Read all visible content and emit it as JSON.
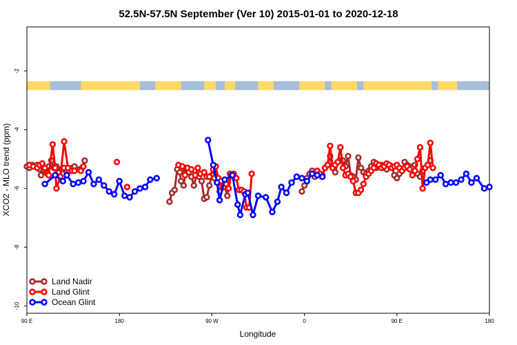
{
  "chart_data": {
    "type": "line",
    "title": "52.5N-57.5N September (Ver 10)   2015-01-01 to 2020-12-18",
    "xlabel": "Longitude",
    "ylabel": "XCO2 - MLO trend (ppm)",
    "xlim": [
      90,
      450
    ],
    "ylim": [
      -10.25,
      -0.5
    ],
    "x_ticks": [
      {
        "value": 90,
        "label": "90 E"
      },
      {
        "value": 162,
        "label": "180"
      },
      {
        "value": 234,
        "label": "90 W"
      },
      {
        "value": 306,
        "label": "0"
      },
      {
        "value": 378,
        "label": "90 E"
      },
      {
        "value": 450,
        "label": "180"
      }
    ],
    "y_ticks": [
      {
        "value": -2,
        "label": "-2"
      },
      {
        "value": -4,
        "label": "-4"
      },
      {
        "value": -6,
        "label": "-6"
      },
      {
        "value": -8,
        "label": "-8"
      },
      {
        "value": -10,
        "label": "-10"
      }
    ],
    "grid": false,
    "legend_position": "bottom-left",
    "land_strip": {
      "y_top": -2.35,
      "y_bottom": -2.65,
      "land_color": "#ffd966",
      "ocean_color": "#a6bddb"
    },
    "series": [
      {
        "name": "Land Nadir",
        "color": "#a52a2a",
        "segments": [
          [
            [
              90,
              -5.25
            ],
            [
              92,
              -5.3
            ],
            [
              94,
              -5.2
            ],
            [
              96,
              -5.25
            ],
            [
              98,
              -5.2
            ],
            [
              100,
              -5.35
            ],
            [
              101,
              -5.55
            ],
            [
              103,
              -5.35
            ],
            [
              105,
              -5.45
            ],
            [
              107,
              -5.25
            ],
            [
              109,
              -5.05
            ],
            [
              111,
              -5.3
            ],
            [
              113,
              -5.25
            ],
            [
              115,
              -5.45
            ],
            [
              117,
              -5.35
            ],
            [
              119,
              -5.3
            ],
            [
              121,
              -5.45
            ],
            [
              123,
              -5.4
            ],
            [
              125,
              -5.3
            ],
            [
              127,
              -5.25
            ],
            [
              131,
              -5.35
            ],
            [
              133,
              -5.3
            ],
            [
              135,
              -5.05
            ]
          ],
          [
            [
              201,
              -6.45
            ],
            [
              203,
              -6.15
            ],
            [
              205,
              -6.05
            ],
            [
              207,
              -5.35
            ],
            [
              209,
              -5.45
            ],
            [
              210,
              -5.75
            ],
            [
              212,
              -5.9
            ],
            [
              214,
              -5.3
            ],
            [
              216,
              -5.45
            ],
            [
              218,
              -5.6
            ],
            [
              220,
              -5.9
            ],
            [
              222,
              -5.55
            ],
            [
              224,
              -5.6
            ],
            [
              226,
              -5.75
            ],
            [
              228,
              -6.35
            ],
            [
              230,
              -6.3
            ],
            [
              232,
              -5.9
            ],
            [
              234,
              -5.55
            ],
            [
              236,
              -5.65
            ],
            [
              238,
              -5.8
            ],
            [
              240,
              -6.1
            ],
            [
              242,
              -5.85
            ],
            [
              244,
              -5.9
            ],
            [
              246,
              -6.25
            ],
            [
              248,
              -5.5
            ]
          ],
          [
            [
              304,
              -6.1
            ],
            [
              306,
              -5.9
            ],
            [
              308,
              -5.65
            ],
            [
              310,
              -5.5
            ],
            [
              312,
              -5.4
            ],
            [
              314,
              -5.6
            ],
            [
              316,
              -5.45
            ],
            [
              318,
              -5.5
            ],
            [
              320,
              -5.55
            ],
            [
              322,
              -5.3
            ],
            [
              324,
              -5.2
            ],
            [
              326,
              -4.9
            ],
            [
              328,
              -5.3
            ],
            [
              330,
              -5.45
            ],
            [
              332,
              -5.1
            ],
            [
              334,
              -5.05
            ],
            [
              336,
              -5.05
            ],
            [
              338,
              -5.25
            ],
            [
              340,
              -4.9
            ],
            [
              342,
              -5.55
            ],
            [
              344,
              -5.6
            ],
            [
              346,
              -5.7
            ],
            [
              348,
              -4.95
            ],
            [
              350,
              -5.3
            ],
            [
              352,
              -5.45
            ],
            [
              354,
              -5.5
            ],
            [
              356,
              -5.4
            ],
            [
              358,
              -5.25
            ],
            [
              360,
              -5.1
            ],
            [
              362,
              -5.3
            ],
            [
              364,
              -5.25
            ],
            [
              366,
              -5.2
            ],
            [
              368,
              -5.3
            ],
            [
              370,
              -5.35
            ],
            [
              372,
              -5.2
            ],
            [
              374,
              -5.25
            ],
            [
              376,
              -5.55
            ],
            [
              378,
              -5.65
            ],
            [
              380,
              -5.5
            ],
            [
              382,
              -5.4
            ],
            [
              384,
              -5.1
            ],
            [
              386,
              -5.2
            ],
            [
              388,
              -5.25
            ],
            [
              390,
              -5.3
            ],
            [
              392,
              -5.2
            ],
            [
              394,
              -5.5
            ],
            [
              396,
              -5.6
            ],
            [
              398,
              -5.4
            ],
            [
              400,
              -5.3
            ],
            [
              402,
              -5.2
            ],
            [
              404,
              -5.05
            ]
          ]
        ]
      },
      {
        "name": "Land Glint",
        "color": "#ff0000",
        "segments": [
          [
            [
              92,
              -5.2
            ],
            [
              95,
              -5.25
            ],
            [
              98,
              -5.3
            ],
            [
              100,
              -5.2
            ],
            [
              102,
              -5.15
            ],
            [
              104,
              -5.3
            ],
            [
              106,
              -5.5
            ],
            [
              107,
              -5.55
            ],
            [
              110,
              -4.5
            ],
            [
              112,
              -5.3
            ],
            [
              113,
              -6.0
            ],
            [
              116,
              -5.6
            ],
            [
              119,
              -4.4
            ],
            [
              122,
              -5.3
            ],
            [
              125,
              -5.4
            ],
            [
              127,
              -5.4
            ],
            [
              132,
              -5.4
            ],
            [
              134,
              -5.25
            ]
          ],
          [
            [
              160,
              -5.1
            ]
          ],
          [
            [
              168,
              -5.95
            ]
          ],
          [
            [
              208,
              -5.2
            ],
            [
              211,
              -5.25
            ],
            [
              213,
              -5.55
            ],
            [
              215,
              -5.3
            ],
            [
              218,
              -5.35
            ],
            [
              221,
              -5.55
            ],
            [
              223,
              -5.3
            ],
            [
              225,
              -5.5
            ],
            [
              228,
              -5.45
            ],
            [
              230,
              -5.6
            ],
            [
              232,
              -5.6
            ],
            [
              235,
              -5.35
            ],
            [
              237,
              -5.25
            ],
            [
              239,
              -5.65
            ],
            [
              241,
              -5.75
            ],
            [
              243,
              -5.95
            ],
            [
              245,
              -5.85
            ],
            [
              247,
              -6.0
            ],
            [
              249,
              -5.55
            ],
            [
              251,
              -5.5
            ],
            [
              253,
              -5.65
            ],
            [
              255,
              -6.05
            ],
            [
              257,
              -6.05
            ],
            [
              259,
              -6.1
            ],
            [
              261,
              -6.65
            ],
            [
              263,
              -6.65
            ],
            [
              265,
              -5.5
            ]
          ],
          [
            [
              316,
              -5.4
            ],
            [
              318,
              -5.5
            ],
            [
              320,
              -5.6
            ],
            [
              322,
              -5.3
            ],
            [
              324,
              -5.2
            ],
            [
              326,
              -4.55
            ],
            [
              328,
              -5.3
            ],
            [
              330,
              -5.2
            ],
            [
              332,
              -5.1
            ],
            [
              334,
              -4.6
            ],
            [
              336,
              -5.3
            ],
            [
              338,
              -5.55
            ],
            [
              340,
              -5.5
            ],
            [
              342,
              -5.6
            ],
            [
              344,
              -5.75
            ],
            [
              346,
              -6.15
            ],
            [
              348,
              -6.15
            ],
            [
              350,
              -6.05
            ],
            [
              352,
              -5.85
            ],
            [
              354,
              -5.6
            ],
            [
              356,
              -5.5
            ],
            [
              358,
              -5.4
            ],
            [
              360,
              -5.3
            ],
            [
              362,
              -5.15
            ],
            [
              364,
              -5.2
            ],
            [
              366,
              -5.3
            ],
            [
              368,
              -5.25
            ],
            [
              370,
              -5.15
            ],
            [
              372,
              -5.2
            ],
            [
              374,
              -5.3
            ],
            [
              376,
              -5.25
            ],
            [
              378,
              -5.2
            ],
            [
              380,
              -5.3
            ],
            [
              382,
              -5.4
            ],
            [
              384,
              -5.3
            ],
            [
              386,
              -5.25
            ],
            [
              388,
              -5.35
            ],
            [
              390,
              -5.55
            ],
            [
              392,
              -5.4
            ],
            [
              394,
              -5.0
            ],
            [
              396,
              -4.6
            ],
            [
              398,
              -6.0
            ],
            [
              400,
              -5.3
            ],
            [
              402,
              -5.2
            ],
            [
              404,
              -4.45
            ],
            [
              406,
              -5.3
            ]
          ]
        ]
      },
      {
        "name": "Ocean Glint",
        "color": "#0000ff",
        "segments": [
          [
            [
              104,
              -5.85
            ],
            [
              112,
              -5.55
            ],
            [
              118,
              -5.75
            ],
            [
              121,
              -5.55
            ],
            [
              126,
              -5.85
            ],
            [
              130,
              -5.8
            ],
            [
              134,
              -5.75
            ],
            [
              138,
              -5.45
            ],
            [
              142,
              -5.85
            ],
            [
              146,
              -5.7
            ],
            [
              150,
              -5.9
            ],
            [
              154,
              -6.1
            ],
            [
              158,
              -6.2
            ],
            [
              162,
              -5.75
            ],
            [
              166,
              -6.25
            ],
            [
              170,
              -6.3
            ],
            [
              174,
              -6.1
            ],
            [
              178,
              -6.0
            ],
            [
              182,
              -5.95
            ],
            [
              186,
              -5.7
            ],
            [
              191,
              -5.65
            ]
          ],
          [
            [
              231,
              -4.35
            ],
            [
              235,
              -5.2
            ],
            [
              238,
              -5.8
            ],
            [
              240,
              -6.4
            ],
            [
              244,
              -5.7
            ],
            [
              250,
              -5.55
            ],
            [
              254,
              -6.55
            ],
            [
              256,
              -6.9
            ],
            [
              260,
              -6.2
            ],
            [
              262,
              -6.15
            ],
            [
              266,
              -6.9
            ],
            [
              270,
              -6.25
            ],
            [
              276,
              -6.3
            ],
            [
              281,
              -6.8
            ],
            [
              285,
              -6.45
            ],
            [
              288,
              -5.95
            ],
            [
              292,
              -6.15
            ],
            [
              296,
              -5.8
            ],
            [
              300,
              -5.6
            ],
            [
              304,
              -5.65
            ],
            [
              308,
              -5.75
            ],
            [
              312,
              -5.5
            ],
            [
              316,
              -5.55
            ],
            [
              320,
              -5.6
            ]
          ],
          [
            [
              401,
              -5.8
            ],
            [
              404,
              -5.7
            ],
            [
              408,
              -5.7
            ],
            [
              412,
              -5.55
            ],
            [
              416,
              -5.85
            ],
            [
              420,
              -5.8
            ],
            [
              424,
              -5.8
            ],
            [
              428,
              -5.7
            ],
            [
              432,
              -5.5
            ],
            [
              436,
              -5.8
            ],
            [
              440,
              -5.65
            ],
            [
              446,
              -6.0
            ],
            [
              450,
              -5.95
            ]
          ]
        ]
      }
    ]
  }
}
